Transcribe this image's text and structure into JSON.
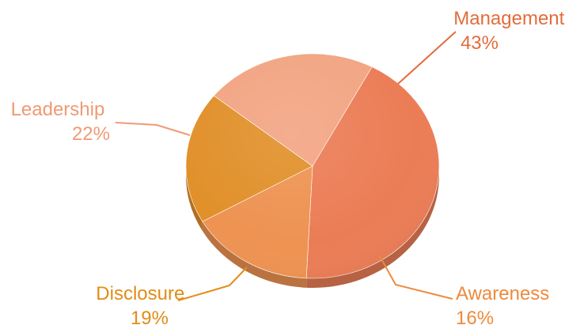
{
  "chart_data": {
    "type": "pie",
    "style": "3d",
    "title": "",
    "slices": [
      {
        "label": "Management",
        "value": 43,
        "percent_label": "43%",
        "color": "#EB7D56",
        "label_color": "#E36C3C"
      },
      {
        "label": "Awareness",
        "value": 16,
        "percent_label": "16%",
        "color": "#EE9352",
        "label_color": "#EE8A3C"
      },
      {
        "label": "Disclosure",
        "value": 19,
        "percent_label": "19%",
        "color": "#E1902A",
        "label_color": "#E28C16"
      },
      {
        "label": "Leadership",
        "value": 22,
        "percent_label": "22%",
        "color": "#F2A583",
        "label_color": "#F09A74"
      }
    ]
  }
}
